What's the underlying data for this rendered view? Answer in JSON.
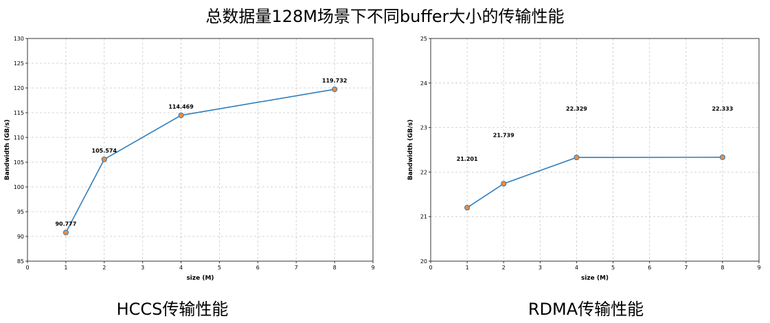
{
  "title": "总数据量128M场景下不同buffer大小的传输性能",
  "chart_data": [
    {
      "type": "line",
      "caption": "HCCS传输性能",
      "xlabel": "size (M)",
      "ylabel": "Bandwidth (GB/s)",
      "x": [
        1,
        2,
        4,
        8
      ],
      "values": [
        90.777,
        105.574,
        114.469,
        119.732
      ],
      "data_labels": [
        "90.777",
        "105.574",
        "114.469",
        "119.732"
      ],
      "xlim": [
        0,
        9
      ],
      "ylim": [
        85,
        130
      ],
      "xticks": [
        0,
        1,
        2,
        3,
        4,
        5,
        6,
        7,
        8,
        9
      ],
      "yticks": [
        85,
        90,
        95,
        100,
        105,
        110,
        115,
        120,
        125,
        130
      ],
      "grid": true,
      "line_color": "#2f7ebc",
      "marker_color": "#f08a3c"
    },
    {
      "type": "line",
      "caption": "RDMA传输性能",
      "xlabel": "size (M)",
      "ylabel": "Bandwidth (GB/s)",
      "x": [
        1,
        2,
        4,
        8
      ],
      "values": [
        21.201,
        21.739,
        22.329,
        22.333
      ],
      "data_labels": [
        "21.201",
        "21.739",
        "22.329",
        "22.333"
      ],
      "xlim": [
        0,
        9
      ],
      "ylim": [
        20,
        25
      ],
      "xticks": [
        0,
        1,
        2,
        3,
        4,
        5,
        6,
        7,
        8,
        9
      ],
      "yticks": [
        20,
        21,
        22,
        23,
        24,
        25
      ],
      "grid": true,
      "line_color": "#2f7ebc",
      "marker_color": "#f08a3c"
    }
  ]
}
